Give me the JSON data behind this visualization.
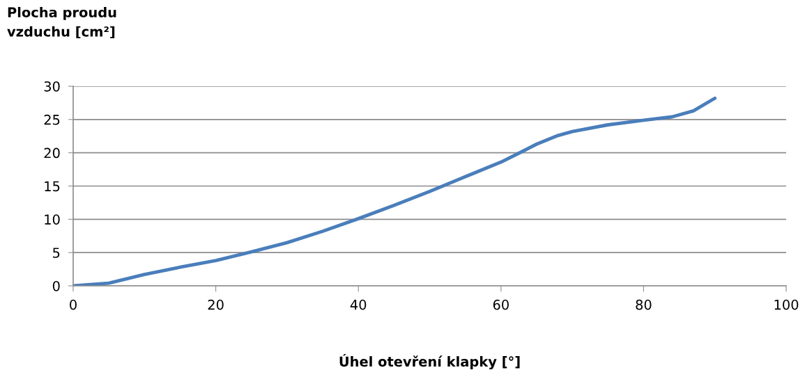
{
  "chart_data": {
    "type": "line",
    "ylabel": "Plocha proudu\nvzduchu [cm²]",
    "xlabel": "Úhel otevření klapky [°]",
    "series": [
      {
        "color": "#4a7ebb",
        "x": [
          0,
          5,
          8,
          10,
          15,
          20,
          25,
          30,
          35,
          40,
          45,
          50,
          55,
          60,
          63,
          65,
          68,
          70,
          75,
          80,
          84,
          87,
          90
        ],
        "values": [
          0,
          0.4,
          1.2,
          1.7,
          2.8,
          3.8,
          5.1,
          6.5,
          8.2,
          10.1,
          12.1,
          14.2,
          16.4,
          18.6,
          20.2,
          21.3,
          22.6,
          23.2,
          24.2,
          24.9,
          25.4,
          26.3,
          28.2
        ]
      }
    ],
    "xlim": [
      0,
      100
    ],
    "xticks": [
      0,
      20,
      40,
      60,
      80,
      100
    ],
    "ylim": [
      0,
      30
    ],
    "yticks": [
      0,
      5,
      10,
      15,
      20,
      25,
      30
    ],
    "grid": "y",
    "marker": "none",
    "line_style": "solid"
  }
}
